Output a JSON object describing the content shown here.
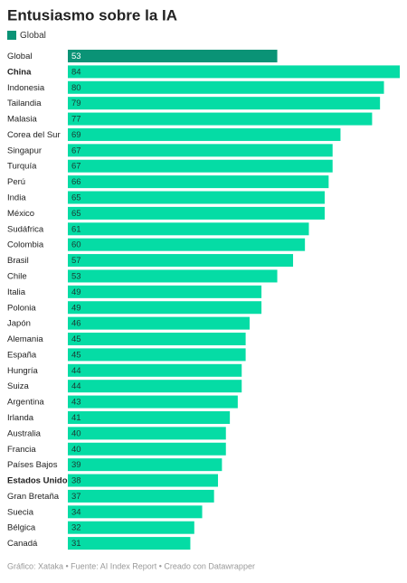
{
  "chart_data": {
    "type": "bar",
    "orientation": "horizontal",
    "title": "Entusiasmo sobre la IA",
    "legend": "Global",
    "source": "Gráfico: Xataka • Fuente: AI Index Report • Creado con Datawrapper",
    "categories": [
      "Global",
      "China",
      "Indonesia",
      "Tailandia",
      "Malasia",
      "Corea del Sur",
      "Singapur",
      "Turquía",
      "Perú",
      "India",
      "México",
      "Sudáfrica",
      "Colombia",
      "Brasil",
      "Chile",
      "Italia",
      "Polonia",
      "Japón",
      "Alemania",
      "España",
      "Hungría",
      "Suiza",
      "Argentina",
      "Irlanda",
      "Australia",
      "Francia",
      "Países Bajos",
      "Estados Unidos",
      "Gran Bretaña",
      "Suecia",
      "Bélgica",
      "Canadá"
    ],
    "values": [
      53,
      84,
      80,
      79,
      77,
      69,
      67,
      67,
      66,
      65,
      65,
      61,
      60,
      57,
      53,
      49,
      49,
      46,
      45,
      45,
      44,
      44,
      43,
      41,
      40,
      40,
      39,
      38,
      37,
      34,
      32,
      31
    ],
    "color": "#05dca5",
    "highlight_color": "#0a9376",
    "highlighted": [
      0
    ],
    "emphasized": [
      1,
      27
    ]
  }
}
